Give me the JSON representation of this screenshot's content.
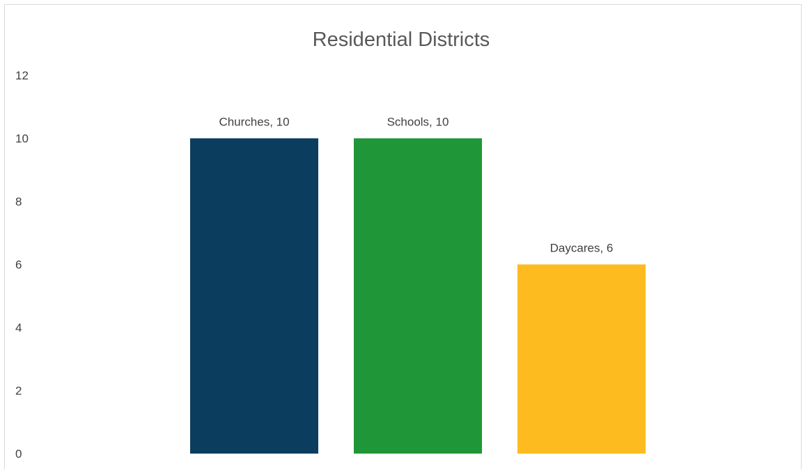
{
  "chart_data": {
    "type": "bar",
    "title": "Residential Districts",
    "xlabel": "",
    "ylabel": "",
    "categories": [
      "Churches",
      "Schools",
      "Daycares"
    ],
    "values": [
      10,
      10,
      6
    ],
    "data_labels": [
      "Churches, 10",
      "Schools, 10",
      "Daycares, 6"
    ],
    "colors": [
      "#0b3d5e",
      "#1f9637",
      "#fdbb1f"
    ],
    "ylim": [
      0,
      12
    ],
    "yticks": [
      0,
      2,
      4,
      6,
      8,
      10,
      12
    ],
    "grid": false,
    "legend": "none"
  }
}
